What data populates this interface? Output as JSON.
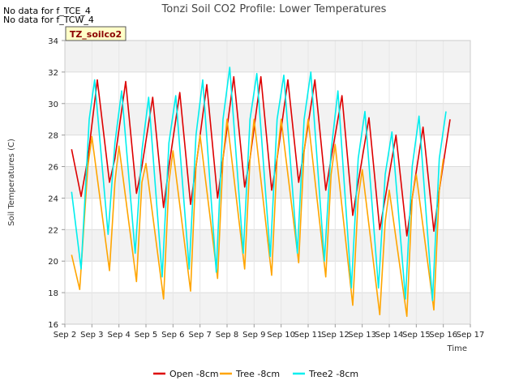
{
  "notes": [
    "No data for f_TCE_4",
    "No data for f_TCW_4"
  ],
  "tag": "TZ_soilco2",
  "chart_data": {
    "type": "line",
    "title": "Tonzi Soil CO2 Profile: Lower Temperatures",
    "xlabel": "Time",
    "ylabel": "Soil Temperatures (C)",
    "xlim": [
      2,
      17
    ],
    "ylim": [
      16,
      34
    ],
    "xticks": [
      2,
      3,
      4,
      5,
      6,
      7,
      8,
      9,
      10,
      11,
      12,
      13,
      14,
      15,
      16,
      17
    ],
    "xtick_labels": [
      "Sep 2",
      "Sep 3",
      "Sep 4",
      "Sep 5",
      "Sep 6",
      "Sep 7",
      "Sep 8",
      "Sep 9",
      "Sep 10",
      "Sep 11",
      "Sep 12",
      "Sep 13",
      "Sep 14",
      "Sep 15",
      "Sep 16",
      "Sep 17"
    ],
    "yticks": [
      16,
      18,
      20,
      22,
      24,
      26,
      28,
      30,
      32,
      34
    ],
    "grid": "horizontal bands",
    "legend_position": "bottom-center",
    "series": [
      {
        "name": "Open -8cm",
        "color": "#dd0000",
        "x": [
          2.25,
          2.6,
          2.85,
          3.2,
          3.65,
          3.85,
          4.25,
          4.65,
          4.85,
          5.25,
          5.65,
          5.85,
          6.25,
          6.65,
          6.85,
          7.25,
          7.65,
          7.85,
          8.25,
          8.65,
          8.85,
          9.25,
          9.65,
          9.85,
          10.25,
          10.65,
          10.85,
          11.25,
          11.65,
          11.85,
          12.25,
          12.65,
          12.85,
          13.25,
          13.65,
          13.85,
          14.25,
          14.65,
          14.85,
          15.25,
          15.65,
          15.85,
          16.25
        ],
        "y": [
          27.1,
          24.1,
          26.5,
          31.5,
          25.0,
          26.5,
          31.4,
          24.3,
          26.0,
          30.4,
          23.4,
          26.0,
          30.7,
          23.6,
          26.0,
          31.2,
          24.0,
          26.5,
          31.7,
          24.7,
          26.5,
          31.7,
          24.5,
          26.5,
          31.5,
          25.0,
          27.0,
          31.5,
          24.5,
          26.5,
          30.5,
          22.9,
          25.0,
          29.1,
          22.0,
          24.0,
          28.0,
          21.6,
          24.0,
          28.5,
          21.9,
          24.5,
          29.0
        ]
      },
      {
        "name": "Tree -8cm",
        "color": "#ffa500",
        "x": [
          2.25,
          2.55,
          2.85,
          3.0,
          3.65,
          3.85,
          4.0,
          4.65,
          4.85,
          5.0,
          5.65,
          5.85,
          6.0,
          6.65,
          6.85,
          7.0,
          7.65,
          7.85,
          8.0,
          8.65,
          8.85,
          9.0,
          9.65,
          9.85,
          10.0,
          10.65,
          10.85,
          11.0,
          11.65,
          11.85,
          12.0,
          12.65,
          12.85,
          13.0,
          13.65,
          13.85,
          14.0,
          14.65,
          14.85,
          15.0,
          15.65,
          15.85,
          16.0
        ],
        "y": [
          20.4,
          18.2,
          26.0,
          27.9,
          19.4,
          25.0,
          27.3,
          18.7,
          25.0,
          26.2,
          17.6,
          25.0,
          27.0,
          18.1,
          26.0,
          28.0,
          18.9,
          26.5,
          29.0,
          19.5,
          26.5,
          29.0,
          19.1,
          26.5,
          29.0,
          19.9,
          27.0,
          29.0,
          19.0,
          25.5,
          27.4,
          17.2,
          24.0,
          25.8,
          16.6,
          22.5,
          24.5,
          16.5,
          24.0,
          25.5,
          16.9,
          24.5,
          26.5
        ]
      },
      {
        "name": "Tree2 -8cm",
        "color": "#00eeee",
        "x": [
          2.25,
          2.6,
          2.9,
          3.1,
          3.6,
          3.85,
          4.1,
          4.6,
          4.85,
          5.1,
          5.6,
          5.85,
          6.1,
          6.6,
          6.85,
          7.1,
          7.6,
          7.85,
          8.1,
          8.6,
          8.85,
          9.1,
          9.6,
          9.85,
          10.1,
          10.6,
          10.85,
          11.1,
          11.6,
          11.85,
          12.1,
          12.6,
          12.85,
          13.1,
          13.6,
          13.85,
          14.1,
          14.6,
          14.85,
          15.1,
          15.6,
          15.85,
          16.1
        ],
        "y": [
          24.4,
          19.5,
          29.0,
          31.5,
          21.7,
          27.5,
          30.8,
          20.5,
          27.0,
          30.4,
          19.0,
          27.5,
          30.5,
          19.5,
          28.0,
          31.5,
          19.3,
          29.0,
          32.3,
          20.5,
          29.0,
          31.9,
          20.3,
          29.0,
          31.8,
          20.5,
          29.0,
          32.0,
          20.0,
          27.0,
          30.8,
          18.3,
          26.5,
          29.5,
          18.3,
          25.5,
          28.2,
          17.6,
          26.0,
          29.2,
          17.5,
          26.5,
          29.5
        ]
      }
    ]
  }
}
